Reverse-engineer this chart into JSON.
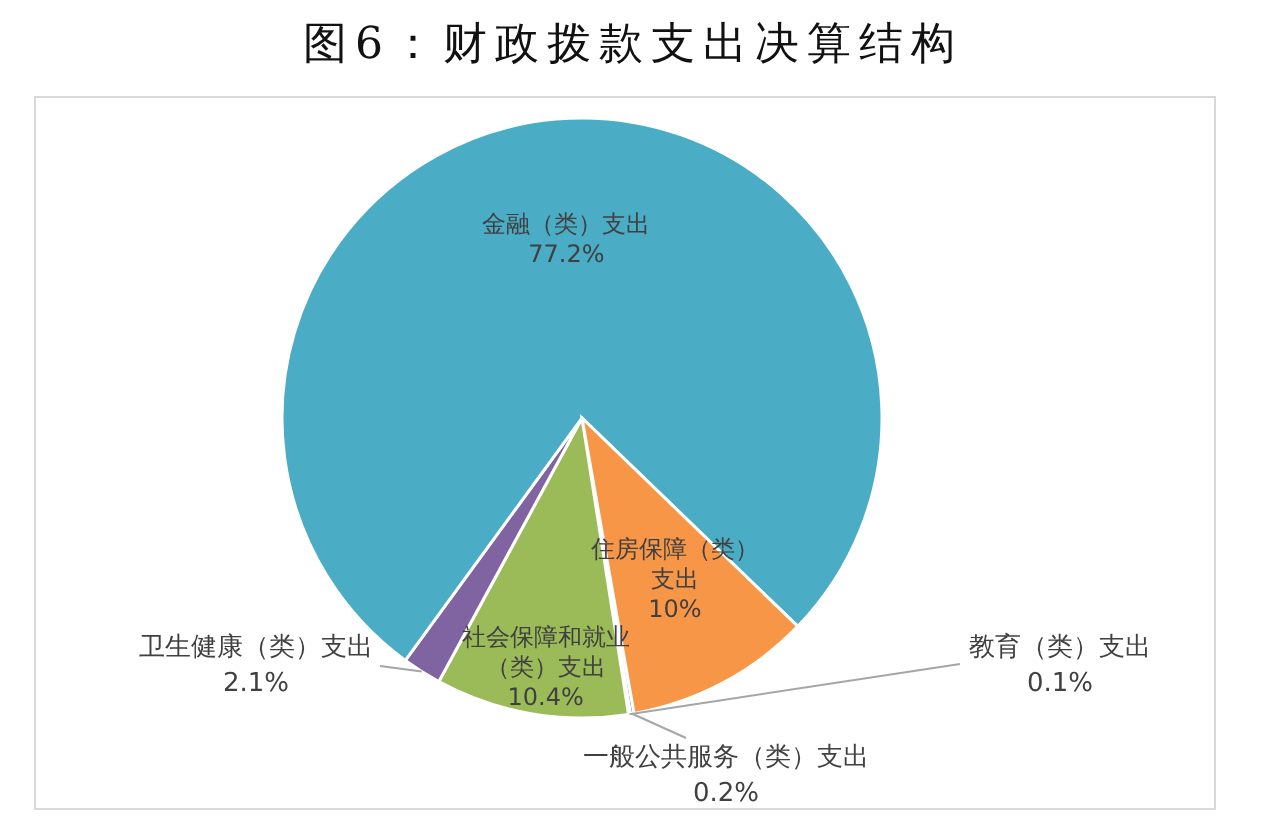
{
  "chart_data": {
    "type": "pie",
    "title": "图6：财政拨款支出决算结构",
    "categories": [
      "一般公共服务（类）支出",
      "教育（类）支出",
      "社会保障和就业（类）支出",
      "卫生健康（类）支出",
      "金融（类）支出",
      "住房保障（类）支出"
    ],
    "values": [
      0.2,
      0.1,
      10.4,
      2.1,
      77.2,
      10
    ],
    "colors": [
      "#4f81bd",
      "#c0504d",
      "#9bbb59",
      "#8064a2",
      "#4bacc6",
      "#f79646"
    ],
    "value_labels": [
      "0.2%",
      "0.1%",
      "10.4%",
      "2.1%",
      "77.2%",
      "10%"
    ]
  }
}
